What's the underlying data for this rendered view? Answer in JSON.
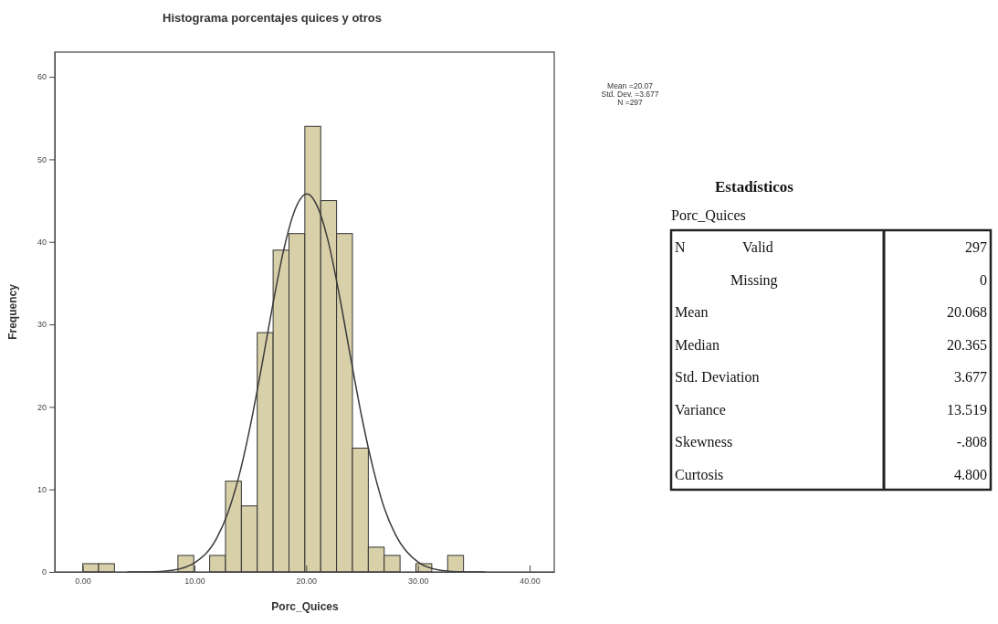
{
  "chart_data": [
    {
      "type": "histogram",
      "title": "Histograma porcentajes quices y otros",
      "xlabel": "Porc_Quices",
      "ylabel": "Frequency",
      "bins": [
        0,
        1.42,
        2.84,
        4.26,
        5.68,
        7.1,
        8.52,
        9.94,
        11.36,
        12.78,
        14.2,
        15.62,
        17.04,
        18.46,
        19.88,
        21.3,
        22.72,
        24.14,
        25.56,
        26.98,
        28.4,
        29.82,
        31.24,
        32.66,
        34.08
      ],
      "series": [
        {
          "type": "histogram",
          "color": "#d8d0a8",
          "values": [
            1,
            1,
            0,
            0,
            0,
            0,
            2,
            0,
            2,
            11,
            8,
            29,
            39,
            41,
            54,
            45,
            41,
            15,
            3,
            2,
            0,
            1,
            0,
            2
          ]
        },
        {
          "type": "line",
          "color": "#3a3a3a",
          "x": [
            4,
            6,
            8,
            10,
            12,
            13,
            14,
            15,
            16,
            17,
            18,
            19,
            20.07,
            21,
            22,
            23,
            24,
            25,
            26,
            27,
            28,
            30,
            32,
            34,
            36
          ],
          "values": [
            0,
            0,
            0.2,
            1.1,
            4.1,
            7.2,
            11.7,
            17.7,
            24.8,
            32.3,
            39.1,
            43.9,
            45.8,
            44.3,
            39.9,
            33.3,
            25.8,
            18.6,
            12.5,
            7.7,
            4.5,
            1.2,
            0.2,
            0,
            0
          ]
        }
      ],
      "xlim": [
        -2.5,
        42.2
      ],
      "ylim": [
        0,
        63
      ],
      "xticks": [
        {
          "value": 0,
          "label": "0.00"
        },
        {
          "value": 10,
          "label": "10.00"
        },
        {
          "value": 20,
          "label": "20.00"
        },
        {
          "value": 30,
          "label": "30.00"
        },
        {
          "value": 40,
          "label": "40.00"
        }
      ],
      "yticks": [
        0,
        10,
        20,
        30,
        40,
        50,
        60
      ],
      "grid": false,
      "annotations": [
        "Mean =20.07",
        "Std. Dev. =3.677",
        "N =297"
      ]
    },
    {
      "type": "other",
      "title": "Estadísticos",
      "subtitle": "Porc_Quices",
      "annotations": [
        "N",
        "Valid",
        "297",
        "Missing",
        "0",
        "Mean",
        "20.068",
        "Median",
        "20.365",
        "Std. Deviation",
        "3.677",
        "Variance",
        "13.519",
        "Skewness",
        "-.808",
        "Curtosis",
        "4.800"
      ]
    }
  ]
}
